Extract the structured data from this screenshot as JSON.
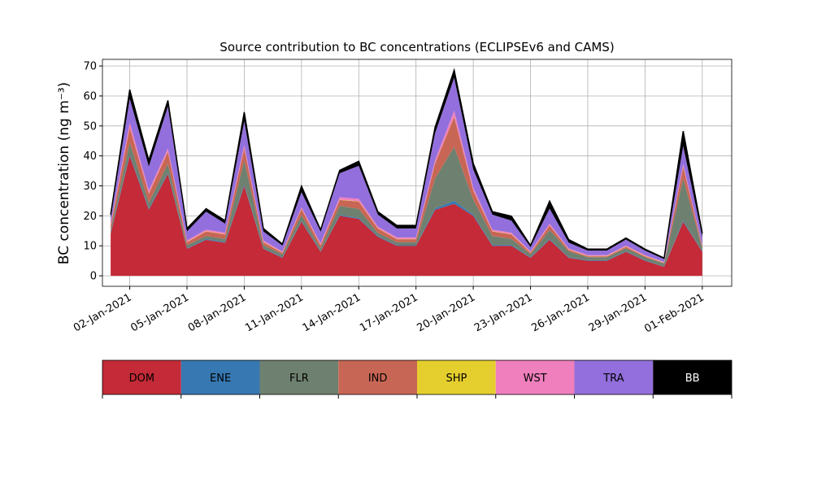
{
  "chart_data": {
    "type": "stacked_area",
    "title": "Source contribution to BC concentrations (ECLIPSEv6 and CAMS)",
    "y_label": "BC concentration (ng m⁻³)",
    "x": [
      "2021-01-01",
      "2021-01-02",
      "2021-01-03",
      "2021-01-04",
      "2021-01-05",
      "2021-01-06",
      "2021-01-07",
      "2021-01-08",
      "2021-01-09",
      "2021-01-10",
      "2021-01-11",
      "2021-01-12",
      "2021-01-13",
      "2021-01-14",
      "2021-01-15",
      "2021-01-16",
      "2021-01-17",
      "2021-01-18",
      "2021-01-19",
      "2021-01-20",
      "2021-01-21",
      "2021-01-22",
      "2021-01-23",
      "2021-01-24",
      "2021-01-25",
      "2021-01-26",
      "2021-01-27",
      "2021-01-28",
      "2021-01-29",
      "2021-01-30",
      "2021-01-31",
      "2021-02-01"
    ],
    "series": [
      {
        "name": "DOM",
        "color": "#c42a37",
        "values": [
          14,
          40,
          22,
          34,
          9,
          12,
          11,
          30,
          9,
          6,
          18,
          8,
          20,
          19,
          13,
          10,
          10,
          22,
          24,
          20,
          10,
          10,
          6,
          12,
          6,
          5,
          5,
          8,
          5,
          3,
          18,
          8
        ]
      },
      {
        "name": "ENE",
        "color": "#3778b2",
        "values": [
          0.3,
          0.5,
          0.4,
          0.4,
          0.2,
          0.3,
          0.3,
          0.5,
          0.2,
          0.2,
          0.3,
          0.2,
          0.3,
          0.3,
          0.3,
          0.2,
          0.2,
          0.5,
          1,
          0.4,
          0.3,
          0.3,
          0.2,
          0.3,
          0.2,
          0.2,
          0.2,
          0.2,
          0.2,
          0.1,
          0.4,
          0.2
        ]
      },
      {
        "name": "FLR",
        "color": "#6e8170",
        "values": [
          1,
          4,
          2,
          3,
          1,
          1,
          1,
          8,
          1,
          1,
          2,
          1,
          3,
          3,
          1,
          1,
          1,
          10,
          18,
          5,
          3,
          2,
          1,
          3,
          2,
          1,
          1,
          1,
          1,
          1,
          14,
          1
        ]
      },
      {
        "name": "IND",
        "color": "#c86655",
        "values": [
          1.5,
          5,
          3,
          4,
          1,
          1.5,
          1.5,
          4,
          1,
          0.5,
          2,
          1,
          2,
          2.5,
          1.5,
          1,
          1,
          5,
          10,
          3,
          1.5,
          1.5,
          0.5,
          1.5,
          0.5,
          0.3,
          0.3,
          0.5,
          0.3,
          0.2,
          4,
          0.5
        ]
      },
      {
        "name": "SHP",
        "color": "#e5cf2e",
        "values": [
          0.1,
          0.1,
          0.1,
          0.1,
          0.1,
          0.1,
          0.1,
          0.1,
          0.1,
          0.1,
          0.1,
          0.1,
          0.1,
          0.1,
          0.1,
          0.1,
          0.1,
          0.1,
          0.1,
          0.1,
          0.1,
          0.1,
          0.1,
          0.1,
          0.1,
          0.1,
          0.1,
          0.1,
          0.1,
          0.1,
          0.1,
          0.1
        ]
      },
      {
        "name": "WST",
        "color": "#f07fbd",
        "values": [
          0.5,
          1.5,
          1,
          1,
          0.5,
          0.5,
          0.5,
          1,
          0.5,
          0.3,
          0.5,
          0.5,
          0.8,
          0.8,
          0.5,
          0.5,
          0.5,
          1,
          2,
          1,
          0.5,
          0.5,
          0.3,
          0.5,
          0.3,
          0.3,
          0.3,
          0.3,
          0.3,
          0.2,
          0.8,
          0.3
        ]
      },
      {
        "name": "TRA",
        "color": "#926fdc",
        "values": [
          2,
          8,
          8,
          14,
          3,
          6,
          3,
          8,
          3,
          2,
          5,
          4,
          8,
          11,
          4,
          3,
          3,
          9,
          11,
          6,
          5,
          4,
          1.5,
          5,
          2,
          1.5,
          1.5,
          2,
          1.5,
          1,
          6,
          3
        ]
      },
      {
        "name": "BB",
        "color": "#000000",
        "values": [
          1,
          3,
          2,
          2,
          1,
          1,
          1,
          3,
          1,
          0.5,
          2,
          0.5,
          1,
          1.5,
          1,
          1,
          1,
          2,
          2.5,
          2,
          1,
          1.5,
          0.5,
          2.5,
          1,
          0.5,
          0.5,
          0.5,
          0.5,
          0.3,
          5,
          1
        ]
      }
    ],
    "xlim": [
      "2020-12-31T13:40",
      "2021-02-02T13:00"
    ],
    "xticks": [
      {
        "value": "2021-01-02",
        "label": "02-Jan-2021"
      },
      {
        "value": "2021-01-05",
        "label": "05-Jan-2021"
      },
      {
        "value": "2021-01-08",
        "label": "08-Jan-2021"
      },
      {
        "value": "2021-01-11",
        "label": "11-Jan-2021"
      },
      {
        "value": "2021-01-14",
        "label": "14-Jan-2021"
      },
      {
        "value": "2021-01-17",
        "label": "17-Jan-2021"
      },
      {
        "value": "2021-01-20",
        "label": "20-Jan-2021"
      },
      {
        "value": "2021-01-23",
        "label": "23-Jan-2021"
      },
      {
        "value": "2021-01-26",
        "label": "26-Jan-2021"
      },
      {
        "value": "2021-01-29",
        "label": "29-Jan-2021"
      },
      {
        "value": "2021-02-01",
        "label": "01-Feb-2021"
      }
    ],
    "ylim": [
      -3.5,
      72.2
    ],
    "yticks": [
      0,
      10,
      20,
      30,
      40,
      50,
      60,
      70
    ],
    "grid": true
  }
}
